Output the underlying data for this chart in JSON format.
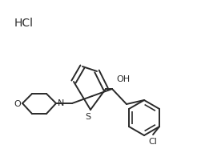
{
  "background_color": "#ffffff",
  "line_color": "#2a2a2a",
  "line_width": 1.4,
  "hcl_text": "HCl",
  "oh_text": "OH",
  "s_text": "S",
  "n_text": "N",
  "o_text": "O",
  "cl_text": "Cl"
}
